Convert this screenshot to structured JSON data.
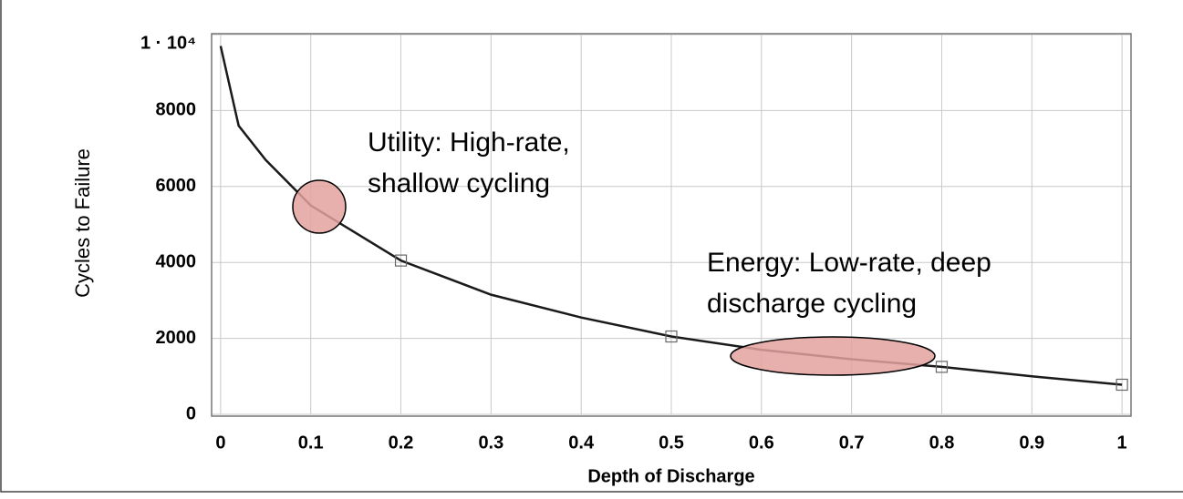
{
  "chart_data": {
    "type": "line",
    "xlabel": "Depth of Discharge",
    "ylabel": "Cycles to Failure",
    "x": [
      0,
      0.02,
      0.05,
      0.1,
      0.2,
      0.3,
      0.4,
      0.5,
      0.6,
      0.7,
      0.8,
      0.9,
      1
    ],
    "series": [
      {
        "color": "#1a1a1a",
        "values": [
          9700,
          7600,
          6700,
          5500,
          4050,
          3150,
          2550,
          2050,
          1700,
          1450,
          1250,
          1000,
          780
        ]
      }
    ],
    "markers": {
      "x": [
        0.2,
        0.5,
        0.8,
        1
      ],
      "values": [
        4050,
        2050,
        1250,
        780
      ],
      "color": "#666666"
    },
    "xlim": [
      -0.01,
      1.01
    ],
    "ylim": [
      0,
      10000
    ],
    "xticks": [
      0,
      0.1,
      0.2,
      0.3,
      0.4,
      0.5,
      0.6,
      0.7,
      0.8,
      0.9,
      1
    ],
    "yticks": [
      0,
      2000,
      4000,
      6000,
      8000,
      {
        "value": 10000,
        "label": "1 · 10⁴"
      }
    ],
    "grid": true,
    "annotations": [
      "Utility: High-rate,",
      "shallow cycling",
      "Energy: Low-rate, deep",
      "discharge cycling"
    ]
  }
}
